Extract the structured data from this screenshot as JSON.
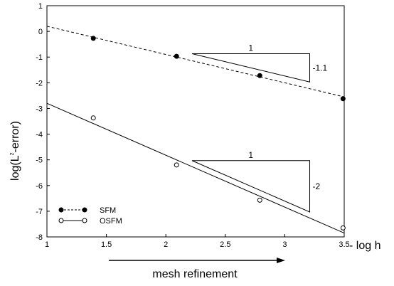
{
  "chart_data": {
    "type": "scatter",
    "xlim": [
      1,
      3.5
    ],
    "ylim": [
      -8,
      1
    ],
    "x_ticks": [
      "1",
      "1.5",
      "2",
      "2.5",
      "3",
      "3.5"
    ],
    "y_ticks": [
      "1",
      "0",
      "-1",
      "-2",
      "-3",
      "-4",
      "-5",
      "-6",
      "-7",
      "-8"
    ],
    "ylabel": {
      "main": "log(L",
      "sup": "2",
      "tail": "-error)"
    },
    "xlabel": "- log h",
    "arrow_label": "mesh refinement",
    "series": [
      {
        "name": "SFM",
        "marker": "filled",
        "line": "dashed",
        "x": [
          1.39,
          2.09,
          2.79,
          3.49
        ],
        "y": [
          -0.27,
          -0.97,
          -1.72,
          -2.62
        ],
        "fit": {
          "x": [
            1,
            3.5
          ],
          "y": [
            0.2,
            -2.55
          ]
        }
      },
      {
        "name": "OSFM",
        "marker": "open",
        "line": "solid",
        "x": [
          1.39,
          2.09,
          2.79,
          3.49
        ],
        "y": [
          -3.37,
          -5.2,
          -6.57,
          -7.65
        ],
        "fit": {
          "x": [
            1,
            3.5
          ],
          "y": [
            -2.8,
            -7.85
          ]
        }
      }
    ],
    "slope_triangles": [
      {
        "run_label": "1",
        "rise_label": "-1.1",
        "x": [
          2.22,
          3.21
        ],
        "y_top": -0.87,
        "y_bottom": -1.97
      },
      {
        "run_label": "1",
        "rise_label": "-2",
        "x": [
          2.22,
          3.21
        ],
        "y_top": -5.03,
        "y_bottom": -7.03
      }
    ],
    "legend": {
      "placement": "bottom-left"
    }
  }
}
